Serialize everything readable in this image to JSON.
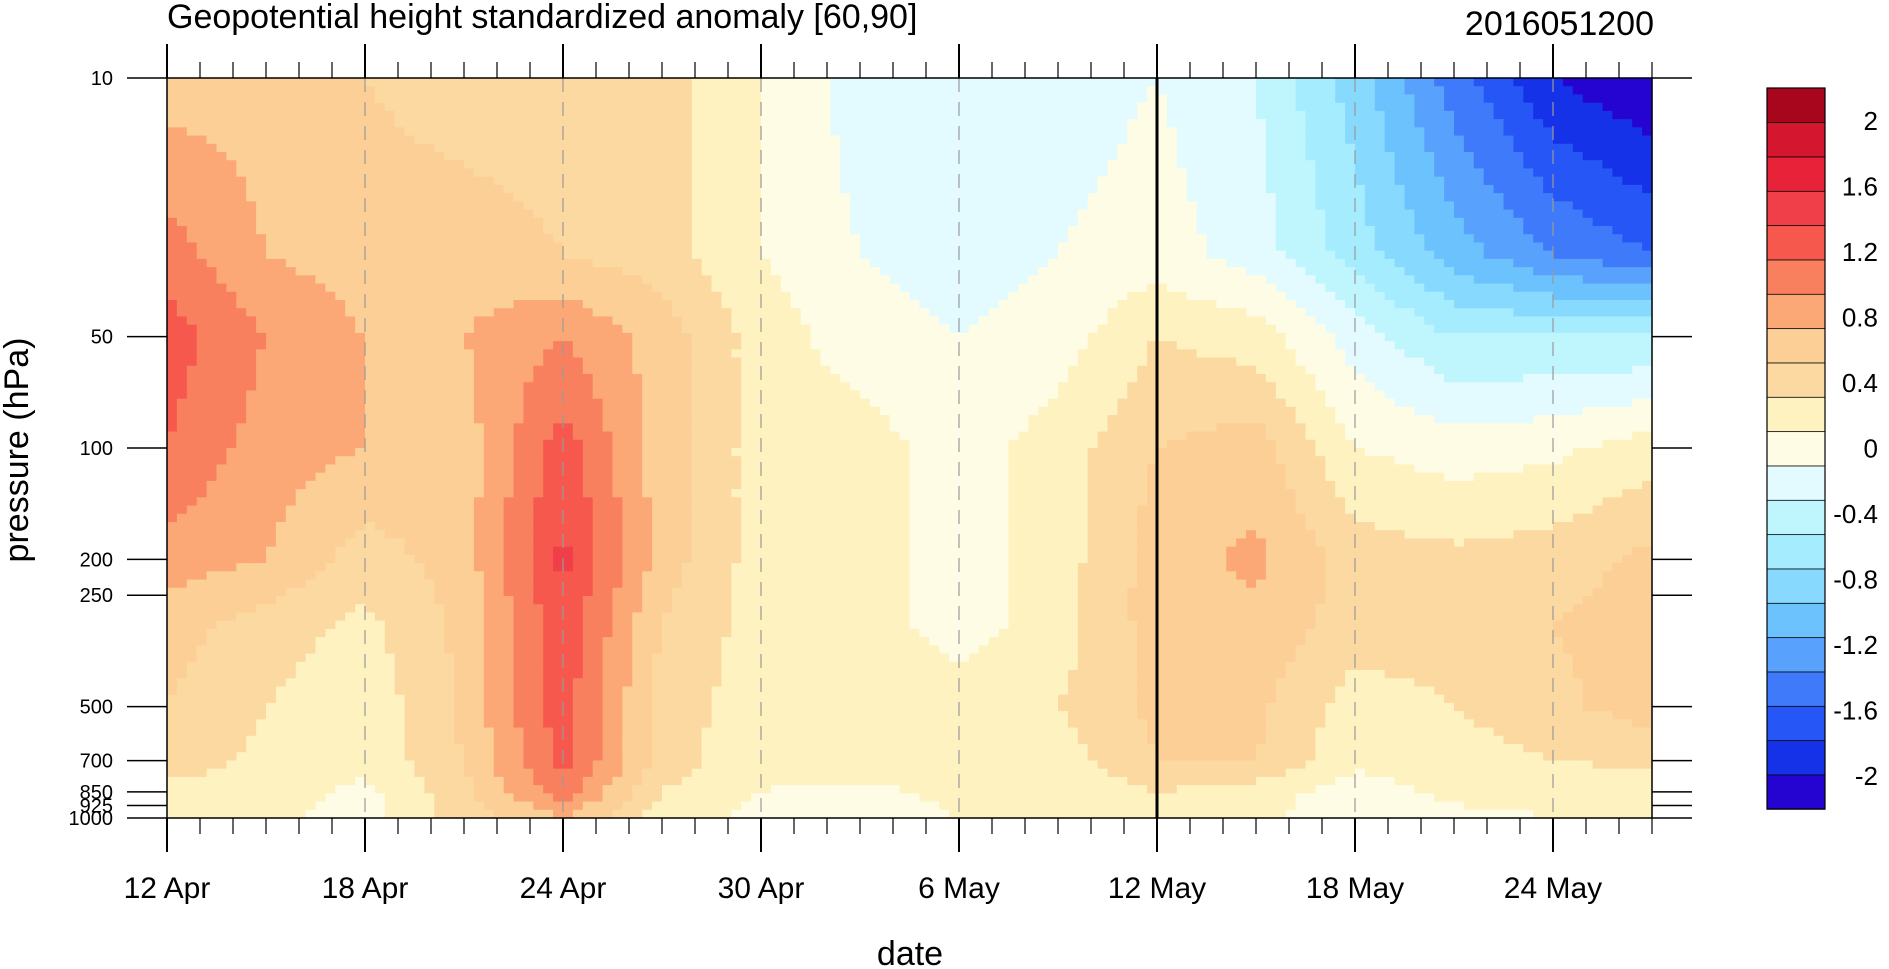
{
  "chart_data": {
    "type": "heatmap",
    "title": "Geopotential height standardized anomaly [60,90]",
    "subtitle": "2016051200",
    "xlabel": "date",
    "ylabel": "pressure (hPa)",
    "x_ticks": [
      "12 Apr",
      "18 Apr",
      "24 Apr",
      "30 Apr",
      "6 May",
      "12 May",
      "18 May",
      "24 May"
    ],
    "x_tick_days": [
      0,
      6,
      12,
      18,
      24,
      30,
      36,
      42
    ],
    "xlim_days": [
      0,
      45
    ],
    "y_ticks": [
      10,
      50,
      100,
      200,
      250,
      500,
      700,
      850,
      925,
      1000
    ],
    "y_tick_labels": [
      "10",
      "50",
      "100",
      "200",
      "250",
      "500",
      "700",
      "850",
      "925",
      "1000"
    ],
    "ylim": [
      1000,
      10
    ],
    "y_scale": "log",
    "analysis_marker": "12 May",
    "colorbar": {
      "levels": [
        -2.2,
        -2.0,
        -1.8,
        -1.6,
        -1.4,
        -1.2,
        -1.0,
        -0.8,
        -0.6,
        -0.4,
        -0.2,
        0,
        0.2,
        0.4,
        0.6,
        0.8,
        1.0,
        1.2,
        1.4,
        1.6,
        1.8,
        2.0,
        2.2
      ],
      "labels": [
        "-2",
        "-1.6",
        "-1.2",
        "-0.8",
        "-0.4",
        "0",
        "0.4",
        "0.8",
        "1.2",
        "1.6",
        "2"
      ],
      "label_values": [
        -2,
        -1.6,
        -1.2,
        -0.8,
        -0.4,
        0,
        0.4,
        0.8,
        1.2,
        1.6,
        2
      ],
      "colors": [
        "#2504d1",
        "#1632e8",
        "#2656f5",
        "#3f7afb",
        "#58a1fc",
        "#6bc2fd",
        "#87d9fe",
        "#a4ecfe",
        "#bff6fe",
        "#e3fbfe",
        "#fefce5",
        "#fdf2c0",
        "#fcd9a0",
        "#fccf97",
        "#fba876",
        "#f9805e",
        "#f6584e",
        "#f03f48",
        "#e82239",
        "#d4172e",
        "#a8061d"
      ]
    },
    "day_columns": [
      0,
      3,
      6,
      9,
      12,
      15,
      18,
      21,
      24,
      27,
      30,
      33,
      36,
      39,
      42,
      45
    ],
    "pressure_rows": [
      10,
      30,
      50,
      100,
      200,
      300,
      500,
      700,
      850,
      1000
    ],
    "values": [
      [
        0.5,
        0.5,
        0.4,
        0.3,
        0.3,
        0.3,
        0.0,
        -0.3,
        -0.3,
        -0.3,
        -0.2,
        -0.4,
        -0.9,
        -1.5,
        -2.0,
        -2.2
      ],
      [
        0.9,
        0.6,
        0.5,
        0.5,
        0.4,
        0.3,
        0.0,
        -0.2,
        -0.3,
        -0.2,
        -0.1,
        -0.3,
        -0.7,
        -1.1,
        -1.4,
        -1.6
      ],
      [
        1.1,
        0.8,
        0.6,
        0.6,
        0.8,
        0.5,
        0.1,
        -0.1,
        -0.2,
        -0.1,
        0.2,
        0.1,
        -0.3,
        -0.6,
        -0.6,
        -0.6
      ],
      [
        1.0,
        0.7,
        0.6,
        0.5,
        1.1,
        0.5,
        0.1,
        0.1,
        -0.1,
        0.1,
        0.4,
        0.5,
        0.0,
        -0.1,
        -0.05,
        0.1
      ],
      [
        0.7,
        0.6,
        0.3,
        0.5,
        1.25,
        0.5,
        0.1,
        0.1,
        -0.1,
        0.1,
        0.5,
        0.65,
        0.3,
        0.25,
        0.3,
        0.45
      ],
      [
        0.5,
        0.3,
        0.15,
        0.45,
        1.15,
        0.4,
        0.1,
        0.1,
        -0.1,
        0.1,
        0.5,
        0.55,
        0.3,
        0.3,
        0.4,
        0.5
      ],
      [
        0.4,
        0.2,
        0.05,
        0.45,
        1.1,
        0.3,
        0.1,
        0.2,
        0.1,
        0.2,
        0.45,
        0.45,
        0.1,
        0.2,
        0.35,
        0.5
      ],
      [
        0.3,
        0.15,
        0.05,
        0.4,
        1.1,
        0.3,
        0.05,
        0.1,
        0.1,
        0.1,
        0.4,
        0.4,
        0.05,
        0.1,
        0.2,
        0.25
      ],
      [
        0.15,
        0.1,
        -0.05,
        0.35,
        0.9,
        0.2,
        0.0,
        -0.05,
        0.05,
        0.05,
        0.2,
        0.1,
        -0.1,
        0.05,
        0.05,
        0.05
      ],
      [
        0.05,
        0.05,
        -0.1,
        0.3,
        0.6,
        0.1,
        -0.05,
        -0.1,
        0.0,
        0.0,
        0.1,
        0.05,
        -0.15,
        -0.05,
        0.0,
        0.0
      ]
    ]
  }
}
